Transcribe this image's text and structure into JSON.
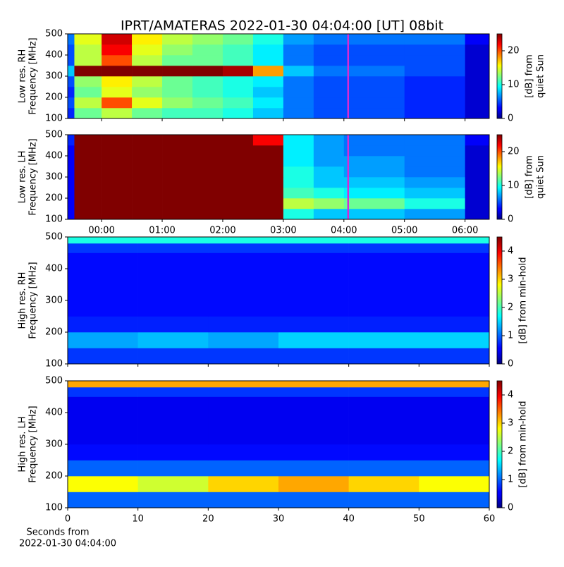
{
  "chart_data": [
    {
      "type": "heatmap",
      "title": "IPRT/AMATERAS 2022-01-30 04:04:00 [UT]   08bit",
      "ylabel": [
        "Low res. RH",
        "Frequency [MHz]"
      ],
      "colorbar_label": [
        "[dB] from",
        "quiet Sun"
      ],
      "xlim": [
        -0.56,
        6.4
      ],
      "ylim": [
        100,
        500
      ],
      "xticks": [
        0,
        1,
        2,
        3,
        4,
        5,
        6
      ],
      "yticks": [
        100,
        200,
        300,
        400,
        500
      ],
      "zlim": [
        0,
        25
      ],
      "zticks": [
        0,
        10,
        20
      ],
      "vline": 4.07,
      "vline_color": "#d62ad6",
      "xbins": [
        -0.56,
        -0.45,
        0,
        0.5,
        1,
        1.5,
        2,
        2.5,
        3,
        3.5,
        4,
        5,
        6,
        6.4
      ],
      "ybins": [
        100,
        150,
        200,
        250,
        300,
        350,
        400,
        450,
        500
      ],
      "z": [
        [
          4,
          12,
          14,
          12,
          11,
          11,
          10,
          8,
          6,
          5,
          5,
          4,
          2
        ],
        [
          5,
          14,
          20,
          15,
          13,
          12,
          11,
          9,
          6,
          5,
          5,
          4,
          2
        ],
        [
          4,
          12,
          15,
          13,
          12,
          11,
          10,
          8,
          6,
          5,
          5,
          4,
          2
        ],
        [
          5,
          13,
          16,
          14,
          12,
          11,
          10,
          9,
          6,
          5,
          5,
          4,
          2
        ],
        [
          8,
          25,
          25,
          25,
          25,
          25,
          24,
          18,
          8,
          6,
          6,
          5,
          2
        ],
        [
          5,
          14,
          20,
          14,
          12,
          12,
          11,
          9,
          6,
          5,
          5,
          5,
          2
        ],
        [
          5,
          14,
          22,
          15,
          13,
          12,
          11,
          9,
          6,
          5,
          5,
          5,
          2
        ],
        [
          6,
          15,
          23,
          16,
          14,
          13,
          12,
          10,
          7,
          6,
          6,
          6,
          3
        ]
      ]
    },
    {
      "type": "heatmap",
      "ylabel": [
        "Low res. LH",
        "Frequency [MHz]"
      ],
      "colorbar_label": [
        "[dB] from",
        "quiet Sun"
      ],
      "xlim": [
        -0.56,
        6.4
      ],
      "ylim": [
        100,
        500
      ],
      "xticks": [
        {
          "value": 0,
          "label": "00:00"
        },
        {
          "value": 1,
          "label": "01:00"
        },
        {
          "value": 2,
          "label": "02:00"
        },
        {
          "value": 3,
          "label": "03:00"
        },
        {
          "value": 4,
          "label": "04:00"
        },
        {
          "value": 5,
          "label": "05:00"
        },
        {
          "value": 6,
          "label": "06:00"
        }
      ],
      "yticks": [
        100,
        200,
        300,
        400,
        500
      ],
      "zlim": [
        0,
        25
      ],
      "zticks": [
        0,
        10,
        20
      ],
      "vline": 4.07,
      "vline_color": "#d62ad6",
      "xbins": [
        -0.56,
        -0.45,
        0,
        0.5,
        1,
        1.5,
        2,
        2.5,
        3,
        3.5,
        4,
        5,
        6,
        6.4
      ],
      "ybins": [
        100,
        150,
        200,
        250,
        300,
        350,
        400,
        450,
        500
      ],
      "z": [
        [
          3,
          25,
          25,
          25,
          25,
          25,
          25,
          25,
          10,
          8,
          8,
          7,
          2
        ],
        [
          3,
          25,
          25,
          25,
          25,
          25,
          25,
          25,
          14,
          13,
          12,
          10,
          2
        ],
        [
          3,
          25,
          25,
          25,
          25,
          25,
          25,
          25,
          11,
          10,
          9,
          8,
          2
        ],
        [
          3,
          25,
          25,
          25,
          25,
          25,
          25,
          25,
          10,
          8,
          8,
          7,
          2
        ],
        [
          3,
          25,
          25,
          25,
          25,
          25,
          25,
          25,
          10,
          8,
          7,
          6,
          2
        ],
        [
          3,
          25,
          25,
          25,
          25,
          25,
          25,
          25,
          9,
          7,
          7,
          6,
          2
        ],
        [
          3,
          25,
          25,
          25,
          25,
          25,
          25,
          25,
          9,
          7,
          6,
          6,
          2
        ],
        [
          4,
          25,
          25,
          25,
          25,
          25,
          25,
          22,
          9,
          7,
          6,
          6,
          3
        ]
      ]
    },
    {
      "type": "heatmap",
      "ylabel": [
        "High res. RH",
        "Frequency [MHz]"
      ],
      "colorbar_label": [
        "[dB] from min-hold"
      ],
      "xlim": [
        0,
        60
      ],
      "ylim": [
        100,
        500
      ],
      "xticks": [
        0,
        10,
        20,
        30,
        40,
        50,
        60
      ],
      "yticks": [
        100,
        200,
        300,
        400,
        500
      ],
      "zlim": [
        0,
        4.5
      ],
      "zticks": [
        0,
        1,
        2,
        3,
        4
      ],
      "xbins": [
        0,
        10,
        20,
        30,
        40,
        50,
        60
      ],
      "ybins": [
        100,
        150,
        200,
        250,
        300,
        400,
        450,
        480,
        500
      ],
      "z": [
        [
          0.8,
          0.8,
          0.8,
          0.8,
          0.8,
          0.8
        ],
        [
          1.3,
          1.4,
          1.3,
          1.5,
          1.5,
          1.5
        ],
        [
          0.7,
          0.7,
          0.7,
          0.7,
          0.7,
          0.7
        ],
        [
          0.6,
          0.6,
          0.6,
          0.6,
          0.6,
          0.6
        ],
        [
          0.6,
          0.6,
          0.6,
          0.6,
          0.6,
          0.6
        ],
        [
          0.6,
          0.6,
          0.6,
          0.6,
          0.6,
          0.6
        ],
        [
          0.8,
          0.8,
          0.8,
          0.8,
          0.8,
          0.8
        ],
        [
          1.8,
          1.8,
          1.8,
          1.8,
          1.8,
          1.8
        ]
      ]
    },
    {
      "type": "heatmap",
      "ylabel": [
        "High res. LH",
        "Frequency [MHz]"
      ],
      "colorbar_label": [
        "[dB] from min-hold"
      ],
      "xlabel": [
        "Seconds from",
        "2022-01-30 04:04:00"
      ],
      "xlim": [
        0,
        60
      ],
      "ylim": [
        100,
        500
      ],
      "xticks": [
        {
          "value": 0,
          "label": "0"
        },
        {
          "value": 10,
          "label": "10"
        },
        {
          "value": 20,
          "label": "20"
        },
        {
          "value": 30,
          "label": "30"
        },
        {
          "value": 40,
          "label": "40"
        },
        {
          "value": 50,
          "label": "50"
        },
        {
          "value": 60,
          "label": "60"
        }
      ],
      "yticks": [
        100,
        200,
        300,
        400,
        500
      ],
      "zlim": [
        0,
        4.5
      ],
      "zticks": [
        0,
        1,
        2,
        3,
        4
      ],
      "xbins": [
        0,
        10,
        20,
        30,
        40,
        50,
        60
      ],
      "ybins": [
        100,
        150,
        200,
        250,
        300,
        400,
        450,
        480,
        500
      ],
      "z": [
        [
          1.0,
          1.0,
          1.0,
          1.0,
          1.0,
          1.0
        ],
        [
          2.8,
          2.6,
          3.0,
          3.2,
          3.0,
          2.8
        ],
        [
          1.0,
          1.0,
          1.0,
          1.0,
          1.0,
          1.0
        ],
        [
          0.6,
          0.6,
          0.6,
          0.6,
          0.6,
          0.6
        ],
        [
          0.5,
          0.5,
          0.5,
          0.5,
          0.5,
          0.5
        ],
        [
          0.5,
          0.5,
          0.5,
          0.5,
          0.5,
          0.5
        ],
        [
          0.8,
          0.8,
          0.8,
          0.8,
          0.8,
          0.8
        ],
        [
          3.2,
          3.2,
          3.2,
          3.2,
          3.2,
          3.2
        ]
      ]
    }
  ]
}
